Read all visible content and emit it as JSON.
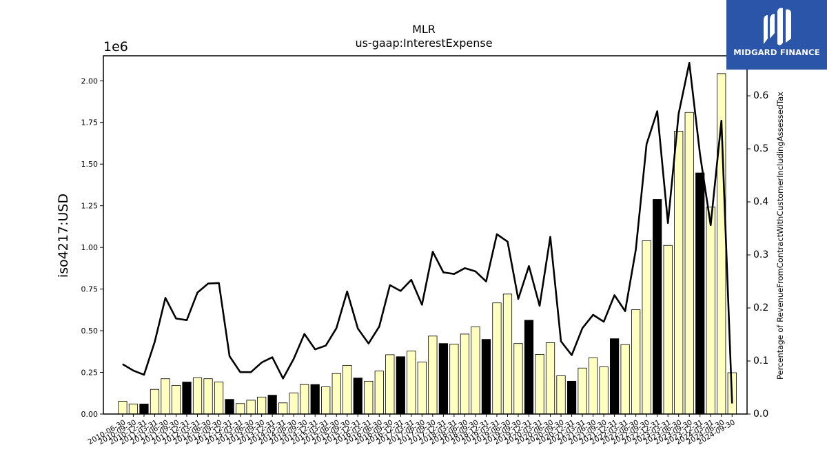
{
  "chart_data": {
    "type": "bar",
    "title": "MLR",
    "subtitle": "us-gaap:InterestExpense",
    "ylabel": "iso4217:USD",
    "y2label": "Percentage of RevenueFromContractWithCustomerIncludingAssessedTax",
    "y_offset_label": "1e6",
    "ylim": [
      0,
      2150000
    ],
    "y2lim": [
      0,
      0.6754
    ],
    "yticks": [
      0,
      250000,
      500000,
      750000,
      1000000,
      1250000,
      1500000,
      1750000,
      2000000
    ],
    "ytick_labels": [
      "0.00",
      "0.25",
      "0.50",
      "0.75",
      "1.00",
      "1.25",
      "1.50",
      "1.75",
      "2.00"
    ],
    "y2ticks": [
      0.0,
      0.1,
      0.2,
      0.3,
      0.4,
      0.5,
      0.6
    ],
    "y2tick_labels": [
      "0.0",
      "0.1",
      "0.2",
      "0.3",
      "0.4",
      "0.5",
      "0.6"
    ],
    "categories": [
      "2010-06-30",
      "2010-09-30",
      "2010-12-31",
      "2011-03-31",
      "2011-06-30",
      "2011-09-30",
      "2011-12-31",
      "2012-03-31",
      "2012-06-30",
      "2012-09-30",
      "2012-12-31",
      "2013-03-31",
      "2013-06-30",
      "2013-09-30",
      "2013-12-31",
      "2014-03-31",
      "2014-06-30",
      "2014-09-30",
      "2014-12-31",
      "2015-03-31",
      "2015-06-30",
      "2015-09-30",
      "2015-12-31",
      "2016-03-31",
      "2016-06-30",
      "2016-09-30",
      "2016-12-31",
      "2017-03-31",
      "2017-06-30",
      "2017-09-30",
      "2017-12-31",
      "2018-03-31",
      "2018-06-30",
      "2018-09-30",
      "2018-12-31",
      "2019-03-31",
      "2019-06-30",
      "2019-09-30",
      "2019-12-31",
      "2020-03-31",
      "2020-06-30",
      "2020-09-30",
      "2020-12-31",
      "2021-03-31",
      "2021-06-30",
      "2021-09-30",
      "2021-12-31",
      "2022-03-31",
      "2022-06-30",
      "2022-09-30",
      "2022-12-31",
      "2023-03-31",
      "2023-06-30",
      "2023-09-30",
      "2023-12-31",
      "2024-03-31",
      "2024-06-30",
      "2024-09-30"
    ],
    "series": [
      {
        "values": [
          76000,
          60000,
          60000,
          148000,
          212000,
          172000,
          192000,
          218000,
          212000,
          192000,
          88000,
          63000,
          83000,
          102000,
          113000,
          67000,
          127000,
          177000,
          177000,
          163000,
          243000,
          292000,
          216000,
          197000,
          258000,
          356000,
          344000,
          378000,
          312000,
          468000,
          423000,
          420000,
          480000,
          523000,
          448000,
          667000,
          720000,
          423000,
          563000,
          358000,
          428000,
          230000,
          197000,
          276000,
          338000,
          283000,
          452000,
          417000,
          626000,
          1040000,
          1288000,
          1012000,
          1697000,
          1810000,
          1447000,
          1243000,
          2043000,
          248000
        ],
        "bar_colors": [
          "#ffffc0",
          "#ffffc0",
          "#000000",
          "#ffffc0",
          "#ffffc0",
          "#ffffc0",
          "#000000",
          "#ffffc0",
          "#ffffc0",
          "#ffffc0",
          "#000000",
          "#ffffc0",
          "#ffffc0",
          "#ffffc0",
          "#000000",
          "#ffffc0",
          "#ffffc0",
          "#ffffc0",
          "#000000",
          "#ffffc0",
          "#ffffc0",
          "#ffffc0",
          "#000000",
          "#ffffc0",
          "#ffffc0",
          "#ffffc0",
          "#000000",
          "#ffffc0",
          "#ffffc0",
          "#ffffc0",
          "#000000",
          "#ffffc0",
          "#ffffc0",
          "#ffffc0",
          "#000000",
          "#ffffc0",
          "#ffffc0",
          "#ffffc0",
          "#000000",
          "#ffffc0",
          "#ffffc0",
          "#ffffc0",
          "#000000",
          "#ffffc0",
          "#ffffc0",
          "#ffffc0",
          "#000000",
          "#ffffc0",
          "#ffffc0",
          "#ffffc0",
          "#000000",
          "#ffffc0",
          "#ffffc0",
          "#ffffc0",
          "#000000",
          "#ffffc0",
          "#ffffc0",
          "#ffffc0"
        ],
        "axis": "left"
      },
      {
        "values": [
          0.094,
          0.082,
          0.074,
          0.136,
          0.219,
          0.18,
          0.177,
          0.229,
          0.246,
          0.247,
          0.109,
          0.079,
          0.079,
          0.097,
          0.107,
          0.067,
          0.104,
          0.151,
          0.122,
          0.129,
          0.162,
          0.231,
          0.161,
          0.133,
          0.165,
          0.243,
          0.232,
          0.253,
          0.206,
          0.306,
          0.267,
          0.264,
          0.275,
          0.269,
          0.25,
          0.339,
          0.325,
          0.217,
          0.279,
          0.204,
          0.334,
          0.137,
          0.111,
          0.162,
          0.187,
          0.174,
          0.224,
          0.194,
          0.31,
          0.509,
          0.571,
          0.36,
          0.566,
          0.662,
          0.49,
          0.356,
          0.553,
          0.02
        ],
        "axis": "right",
        "line_color": "#000000"
      }
    ],
    "grid": false
  },
  "logo": {
    "name": "MIDGARD FINANCE",
    "background": "#2a55a8"
  }
}
